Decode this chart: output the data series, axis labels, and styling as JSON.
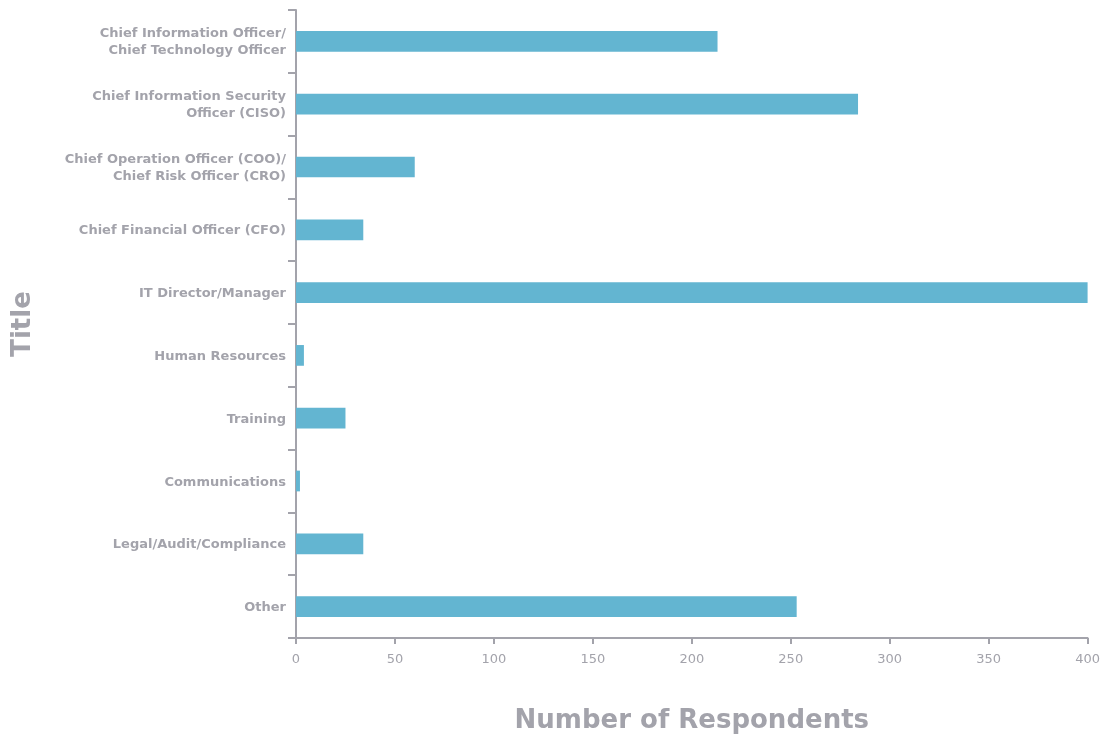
{
  "chart_data": {
    "type": "bar",
    "orientation": "horizontal",
    "xlabel": "Number of Respondents",
    "ylabel": "Title",
    "categories": [
      "Chief Information Officer/\nChief Technology Officer",
      "Chief Information Security\nOfficer (CISO)",
      "Chief Operation Officer (COO)/\nChief Risk Officer (CRO)",
      "Chief Financial Officer (CFO)",
      "IT Director/Manager",
      "Human Resources",
      "Training",
      "Communications",
      "Legal/Audit/Compliance",
      "Other"
    ],
    "values": [
      213,
      284,
      60,
      34,
      400,
      4,
      25,
      2,
      34,
      253
    ],
    "color": "#63b5d1",
    "xlim": [
      0,
      400
    ],
    "xticks": [
      0,
      50,
      100,
      150,
      200,
      250,
      300,
      350,
      400
    ],
    "grid": false
  }
}
